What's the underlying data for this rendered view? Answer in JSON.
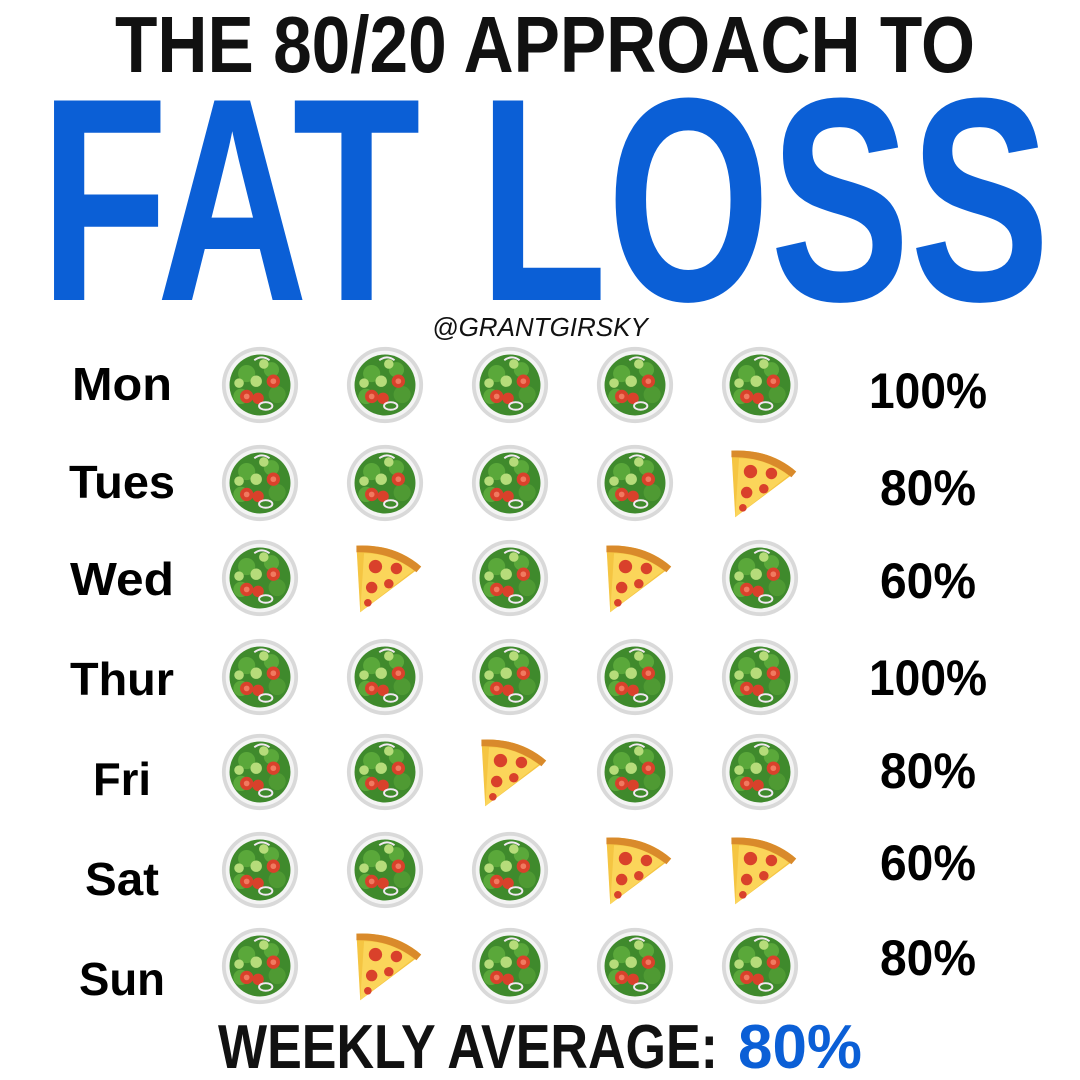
{
  "header": {
    "title_line1": "THE 80/20 APPROACH TO",
    "title_line2": "FAT LOSS",
    "handle": "@GRANTGIRSKY"
  },
  "rows": [
    {
      "day": "Mon",
      "percent": "100%"
    },
    {
      "day": "Tues",
      "percent": "80%"
    },
    {
      "day": "Wed",
      "percent": "60%"
    },
    {
      "day": "Thur",
      "percent": "100%"
    },
    {
      "day": "Fri",
      "percent": "80%"
    },
    {
      "day": "Sat",
      "percent": "60%"
    },
    {
      "day": "Sun",
      "percent": "80%"
    }
  ],
  "footer": {
    "label": "WEEKLY AVERAGE:",
    "value": "80%"
  }
}
